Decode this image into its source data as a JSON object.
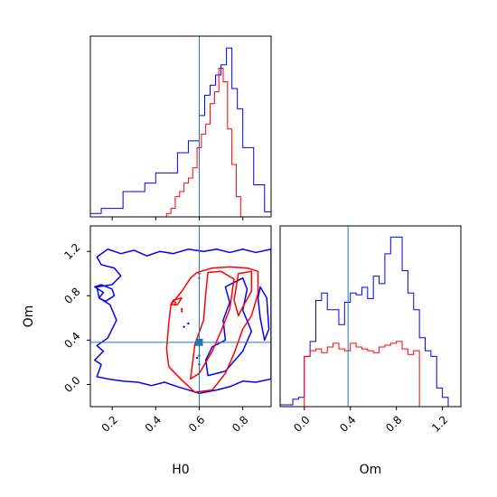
{
  "chart_data": {
    "type": "corner",
    "parameters": [
      "H0",
      "Om"
    ],
    "truths": {
      "H0": 0.6,
      "Om": 0.38
    },
    "colors": {
      "outer": "#0000ff",
      "inner": "#ff0000",
      "truth": "#1f77b4"
    },
    "grid": false,
    "panels": {
      "h0_hist": {
        "type": "histogram",
        "xlim": [
          0.1,
          0.93
        ],
        "xticks": [
          0.2,
          0.4,
          0.6,
          0.8
        ],
        "tick_labels_shown": false,
        "series": [
          {
            "color": "blue",
            "bin_edges": [
              0.1,
              0.15,
              0.2,
              0.25,
              0.3,
              0.35,
              0.4,
              0.45,
              0.5,
              0.55,
              0.6,
              0.625,
              0.65,
              0.675,
              0.7,
              0.725,
              0.75,
              0.775,
              0.8,
              0.85,
              0.9,
              0.93
            ],
            "counts": [
              0.02,
              0.05,
              0.05,
              0.15,
              0.15,
              0.2,
              0.26,
              0.26,
              0.38,
              0.45,
              0.6,
              0.72,
              0.78,
              0.84,
              0.9,
              1.0,
              0.76,
              0.64,
              0.41,
              0.19,
              0.03
            ]
          },
          {
            "color": "red",
            "bin_edges": [
              0.45,
              0.47,
              0.49,
              0.51,
              0.53,
              0.55,
              0.57,
              0.59,
              0.61,
              0.63,
              0.65,
              0.67,
              0.69,
              0.71,
              0.73,
              0.75,
              0.77,
              0.79
            ],
            "counts": [
              0.02,
              0.05,
              0.12,
              0.15,
              0.2,
              0.23,
              0.29,
              0.41,
              0.49,
              0.55,
              0.67,
              0.74,
              0.88,
              0.8,
              0.52,
              0.31,
              0.12
            ]
          }
        ]
      },
      "joint": {
        "type": "contour",
        "xlabel": "H0",
        "ylabel": "Om",
        "xlim": [
          0.1,
          0.93
        ],
        "ylim": [
          -0.2,
          1.43
        ],
        "xticks": [
          0.2,
          0.4,
          0.6,
          0.8
        ],
        "xtick_labels": [
          "0.2",
          "0.4",
          "0.6",
          "0.8"
        ],
        "yticks": [
          0.0,
          0.4,
          0.8,
          1.2
        ],
        "ytick_labels": [
          "0.0",
          "0.4",
          "0.8",
          "1.2"
        ],
        "contours": [
          {
            "color": "blue",
            "points": [
              [
                0.13,
                1.15
              ],
              [
                0.18,
                1.22
              ],
              [
                0.24,
                1.18
              ],
              [
                0.3,
                1.21
              ],
              [
                0.36,
                1.16
              ],
              [
                0.42,
                1.2
              ],
              [
                0.48,
                1.18
              ],
              [
                0.55,
                1.22
              ],
              [
                0.62,
                1.2
              ],
              [
                0.68,
                1.22
              ],
              [
                0.74,
                1.19
              ],
              [
                0.8,
                1.22
              ],
              [
                0.86,
                1.19
              ],
              [
                0.93,
                1.22
              ],
              [
                0.93,
                0.05
              ],
              [
                0.86,
                0.02
              ],
              [
                0.8,
                0.03
              ],
              [
                0.74,
                -0.02
              ],
              [
                0.68,
                -0.05
              ],
              [
                0.6,
                -0.08
              ],
              [
                0.55,
                -0.05
              ],
              [
                0.5,
                -0.02
              ],
              [
                0.44,
                0.02
              ],
              [
                0.38,
                -0.01
              ],
              [
                0.32,
                0.02
              ],
              [
                0.25,
                0.03
              ],
              [
                0.18,
                0.05
              ],
              [
                0.13,
                0.07
              ],
              [
                0.15,
                0.18
              ],
              [
                0.12,
                0.22
              ],
              [
                0.16,
                0.3
              ],
              [
                0.13,
                0.35
              ],
              [
                0.18,
                0.42
              ],
              [
                0.22,
                0.58
              ],
              [
                0.19,
                0.72
              ],
              [
                0.14,
                0.78
              ],
              [
                0.13,
                0.88
              ],
              [
                0.2,
                0.9
              ],
              [
                0.24,
                0.98
              ],
              [
                0.21,
                1.05
              ],
              [
                0.15,
                1.08
              ]
            ]
          },
          {
            "color": "blue",
            "points": [
              [
                0.12,
                0.88
              ],
              [
                0.16,
                0.83
              ],
              [
                0.14,
                0.78
              ],
              [
                0.17,
                0.75
              ],
              [
                0.21,
                0.8
              ],
              [
                0.2,
                0.86
              ],
              [
                0.15,
                0.9
              ]
            ]
          },
          {
            "color": "blue",
            "points": [
              [
                0.72,
                0.88
              ],
              [
                0.8,
                0.96
              ],
              [
                0.82,
                0.86
              ],
              [
                0.8,
                0.67
              ],
              [
                0.84,
                0.48
              ],
              [
                0.8,
                0.3
              ],
              [
                0.72,
                0.12
              ],
              [
                0.64,
                0.08
              ],
              [
                0.63,
                0.22
              ],
              [
                0.66,
                0.34
              ],
              [
                0.72,
                0.4
              ],
              [
                0.71,
                0.58
              ],
              [
                0.74,
                0.74
              ]
            ]
          },
          {
            "color": "blue",
            "points": [
              [
                0.88,
                0.88
              ],
              [
                0.91,
                0.78
              ],
              [
                0.92,
                0.5
              ],
              [
                0.9,
                0.4
              ],
              [
                0.88,
                0.6
              ],
              [
                0.87,
                0.78
              ]
            ]
          },
          {
            "color": "red",
            "points": [
              [
                0.59,
                1.01
              ],
              [
                0.66,
                1.05
              ],
              [
                0.74,
                1.06
              ],
              [
                0.82,
                1.05
              ],
              [
                0.87,
                1.02
              ],
              [
                0.87,
                0.82
              ],
              [
                0.84,
                0.62
              ],
              [
                0.8,
                0.5
              ],
              [
                0.76,
                0.28
              ],
              [
                0.72,
                0.1
              ],
              [
                0.66,
                -0.05
              ],
              [
                0.58,
                -0.07
              ],
              [
                0.52,
                0.04
              ],
              [
                0.46,
                0.16
              ],
              [
                0.45,
                0.32
              ],
              [
                0.46,
                0.55
              ],
              [
                0.47,
                0.72
              ],
              [
                0.52,
                0.84
              ],
              [
                0.56,
                0.96
              ]
            ]
          },
          {
            "color": "red",
            "points": [
              [
                0.64,
                1.01
              ],
              [
                0.7,
                1.02
              ],
              [
                0.76,
                0.95
              ],
              [
                0.74,
                0.68
              ],
              [
                0.7,
                0.48
              ],
              [
                0.66,
                0.3
              ],
              [
                0.6,
                0.1
              ],
              [
                0.56,
                0.05
              ],
              [
                0.58,
                0.36
              ],
              [
                0.62,
                0.58
              ],
              [
                0.63,
                0.82
              ]
            ]
          },
          {
            "color": "red",
            "points": [
              [
                0.78,
                1.0
              ],
              [
                0.84,
                1.02
              ],
              [
                0.84,
                0.84
              ],
              [
                0.8,
                0.7
              ],
              [
                0.78,
                0.62
              ],
              [
                0.76,
                0.76
              ]
            ]
          },
          {
            "color": "red",
            "points": [
              [
                0.48,
                0.76
              ],
              [
                0.52,
                0.78
              ],
              [
                0.5,
                0.72
              ],
              [
                0.47,
                0.72
              ]
            ]
          }
        ],
        "red_dots": [
          [
            0.6,
            1.0
          ],
          [
            0.6,
            0.96
          ],
          [
            0.52,
            0.68
          ],
          [
            0.52,
            0.66
          ],
          [
            0.49,
            0.72
          ],
          [
            0.49,
            0.74
          ]
        ],
        "blue_dots": [
          [
            0.55,
            0.55
          ],
          [
            0.53,
            0.52
          ],
          [
            0.6,
            0.26
          ],
          [
            0.59,
            0.24
          ],
          [
            0.6,
            0.18
          ]
        ],
        "truth_point": [
          0.6,
          0.38
        ]
      },
      "om_hist": {
        "type": "histogram",
        "xlabel": "Om",
        "xlim": [
          -0.21,
          1.36
        ],
        "xticks": [
          0.0,
          0.4,
          0.8,
          1.2
        ],
        "xtick_labels": [
          "0.0",
          "0.4",
          "0.8",
          "1.2"
        ],
        "series": [
          {
            "color": "blue",
            "bin_edges": [
              -0.21,
              -0.15,
              -0.1,
              -0.05,
              0.0,
              0.05,
              0.1,
              0.15,
              0.2,
              0.25,
              0.3,
              0.35,
              0.4,
              0.45,
              0.5,
              0.55,
              0.6,
              0.65,
              0.7,
              0.75,
              0.8,
              0.85,
              0.9,
              0.95,
              1.0,
              1.05,
              1.1,
              1.15,
              1.2,
              1.25
            ],
            "counts": [
              0.01,
              0.01,
              0.04,
              0.05,
              0.27,
              0.35,
              0.57,
              0.61,
              0.52,
              0.52,
              0.44,
              0.56,
              0.61,
              0.6,
              0.64,
              0.58,
              0.7,
              0.66,
              0.82,
              0.91,
              0.91,
              0.73,
              0.61,
              0.52,
              0.37,
              0.3,
              0.27,
              0.1,
              0.05
            ]
          },
          {
            "color": "red",
            "bin_edges": [
              0.0,
              0.05,
              0.1,
              0.15,
              0.2,
              0.25,
              0.3,
              0.35,
              0.4,
              0.45,
              0.5,
              0.55,
              0.6,
              0.65,
              0.7,
              0.75,
              0.8,
              0.85,
              0.9,
              0.95,
              1.0
            ],
            "counts": [
              0.27,
              0.3,
              0.31,
              0.29,
              0.32,
              0.34,
              0.31,
              0.3,
              0.34,
              0.32,
              0.31,
              0.3,
              0.29,
              0.32,
              0.33,
              0.34,
              0.35,
              0.31,
              0.28,
              0.3
            ]
          }
        ]
      }
    }
  }
}
